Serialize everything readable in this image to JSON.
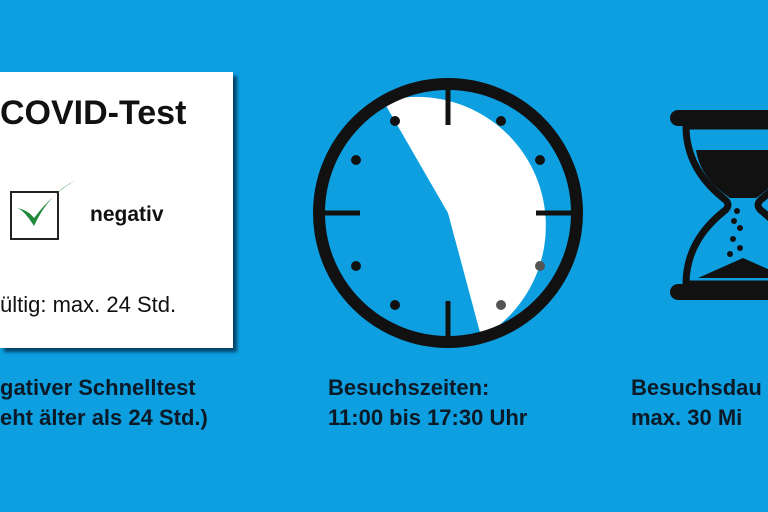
{
  "test_card": {
    "title": "COVID-Test",
    "result_label": "negativ",
    "validity": "ültig: max. 24 Std.",
    "checked": true,
    "check_color": "#1f8a3a"
  },
  "captions": {
    "test": [
      "gativer Schnelltest",
      "eht älter als 24 Std.)"
    ],
    "visiting_hours": [
      "Besuchszeiten:",
      "11:00 bis 17:30 Uhr"
    ],
    "duration": [
      "Besuchsdau",
      "max. 30 Mi"
    ]
  },
  "clock": {
    "start_time": "11:00",
    "end_time": "17:30"
  },
  "icons": [
    "checkbox-icon",
    "clock-icon",
    "hourglass-icon"
  ],
  "colors": {
    "background": "#0d9fe0",
    "card": "#ffffff",
    "ink": "#111111"
  }
}
